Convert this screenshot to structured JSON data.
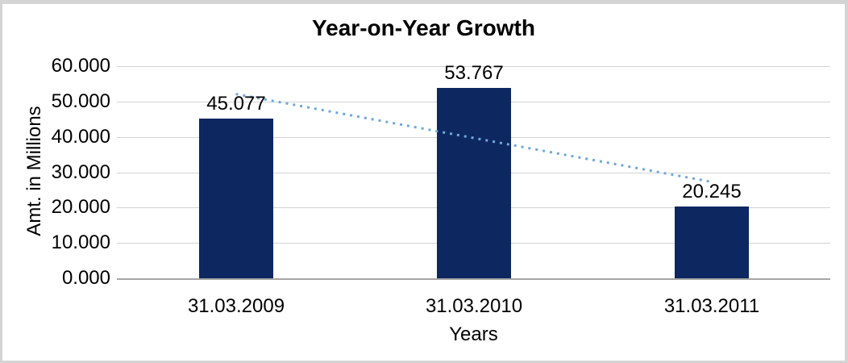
{
  "chart_data": {
    "type": "bar",
    "title": "Year-on-Year Growth",
    "xlabel": "Years",
    "ylabel": "Amt. in Millions",
    "categories": [
      "31.03.2009",
      "31.03.2010",
      "31.03.2011"
    ],
    "values": [
      45.077,
      53.767,
      20.245
    ],
    "data_labels": [
      "45.077",
      "53.767",
      "20.245"
    ],
    "ylim": [
      0,
      60
    ],
    "ytick_step": 10,
    "ytick_labels": [
      "60.000",
      "50.000",
      "40.000",
      "30.000",
      "20.000",
      "10.000",
      "0.000"
    ],
    "grid": true,
    "legend": "none",
    "bar_color": "#0d2760",
    "gridline_color": "#d3d3d3",
    "axis_line_color": "#a6a6a6",
    "trendline": {
      "type": "linear",
      "style": "dotted",
      "color": "#6fa8dc",
      "values_at_categories": [
        52.11,
        39.7,
        27.28
      ]
    }
  }
}
